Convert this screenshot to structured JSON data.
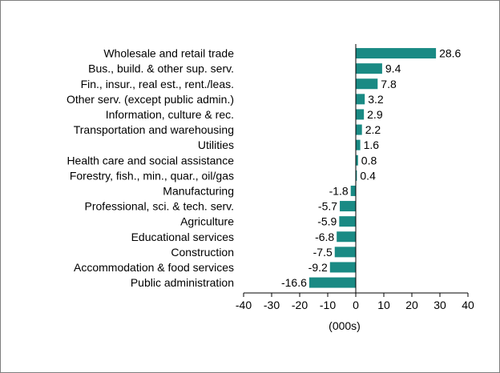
{
  "chart_data": {
    "type": "bar",
    "orientation": "horizontal",
    "categories": [
      "Wholesale and retail trade",
      "Bus., build. & other sup. serv.",
      "Fin., insur., real est., rent./leas.",
      "Other serv. (except public admin.)",
      "Information, culture & rec.",
      "Transportation and warehousing",
      "Utilities",
      "Health care and social assistance",
      "Forestry, fish., min., quar., oil/gas",
      "Manufacturing",
      "Professional, sci. & tech. serv.",
      "Agriculture",
      "Educational services",
      "Construction",
      "Accommodation & food services",
      "Public administration"
    ],
    "values": [
      28.6,
      9.4,
      7.8,
      3.2,
      2.9,
      2.2,
      1.6,
      0.8,
      0.4,
      -1.8,
      -5.7,
      -5.9,
      -6.8,
      -7.5,
      -9.2,
      -16.6
    ],
    "value_labels": [
      "28.6",
      "9.4",
      "7.8",
      "3.2",
      "2.9",
      "2.2",
      "1.6",
      "0.8",
      "0.4",
      "-1.8",
      "-5.7",
      "-5.9",
      "-6.8",
      "-7.5",
      "-9.2",
      "-16.6"
    ],
    "xlim": [
      -40,
      40
    ],
    "xticks": [
      -40,
      -30,
      -20,
      -10,
      0,
      10,
      20,
      30,
      40
    ],
    "xtick_labels": [
      "-40",
      "-30",
      "-20",
      "-10",
      "0",
      "10",
      "20",
      "30",
      "40"
    ],
    "xlabel": "(000s)",
    "ylabel": "",
    "title": "",
    "grid": false,
    "bar_color": "#1a8a84",
    "axis_color": "#000000"
  }
}
